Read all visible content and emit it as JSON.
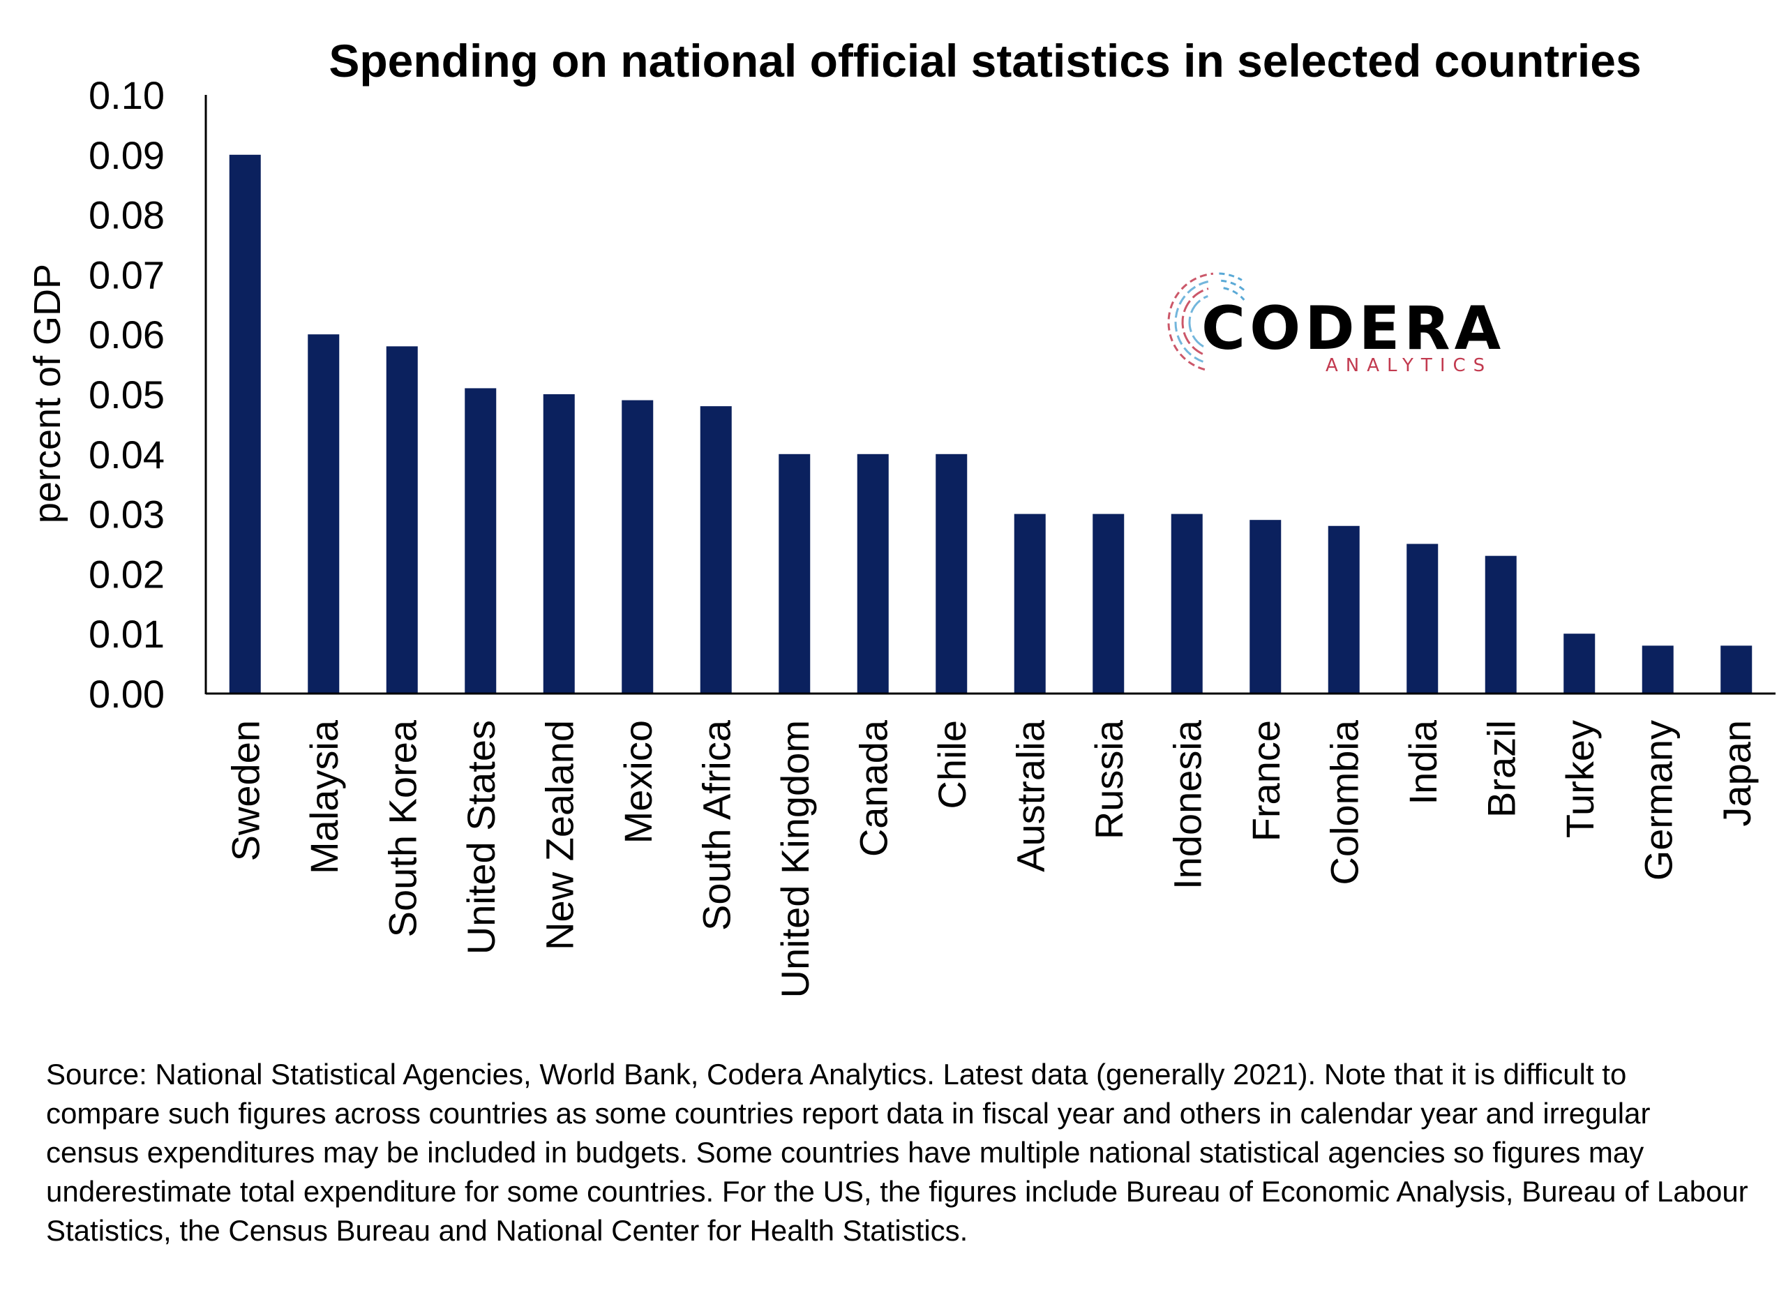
{
  "colors": {
    "bar": "#0b215e",
    "axis": "#000000",
    "logo_red": "#c23a4f",
    "logo_blue": "#5aa9d6"
  },
  "logo": {
    "word": "CODERA",
    "sub": "ANALYTICS"
  },
  "source_note": "Source: National Statistical Agencies, World Bank, Codera Analytics. Latest data (generally 2021). Note that it is difficult to compare such figures across countries as some countries report data in fiscal year and others in calendar year and irregular census expenditures may be included in budgets. Some countries have multiple national statistical agencies so figures may underestimate total expenditure for some countries. For the US, the figures include Bureau of Economic Analysis, Bureau of Labour Statistics, the Census Bureau and National Center for Health Statistics.",
  "chart_data": {
    "type": "bar",
    "title": "Spending on national official statistics in selected countries",
    "xlabel": "",
    "ylabel": "percent of GDP",
    "ylim": [
      0,
      0.1
    ],
    "yticks": [
      "0.00",
      "0.01",
      "0.02",
      "0.03",
      "0.04",
      "0.05",
      "0.06",
      "0.07",
      "0.08",
      "0.09",
      "0.10"
    ],
    "grid": false,
    "legend": "none",
    "categories": [
      "Sweden",
      "Malaysia",
      "South Korea",
      "United States",
      "New Zealand",
      "Mexico",
      "South Africa",
      "United Kingdom",
      "Canada",
      "Chile",
      "Australia",
      "Russia",
      "Indonesia",
      "France",
      "Colombia",
      "India",
      "Brazil",
      "Turkey",
      "Germany",
      "Japan"
    ],
    "values": [
      0.09,
      0.06,
      0.058,
      0.051,
      0.05,
      0.049,
      0.048,
      0.04,
      0.04,
      0.04,
      0.03,
      0.03,
      0.03,
      0.029,
      0.028,
      0.025,
      0.023,
      0.01,
      0.008,
      0.008
    ]
  }
}
